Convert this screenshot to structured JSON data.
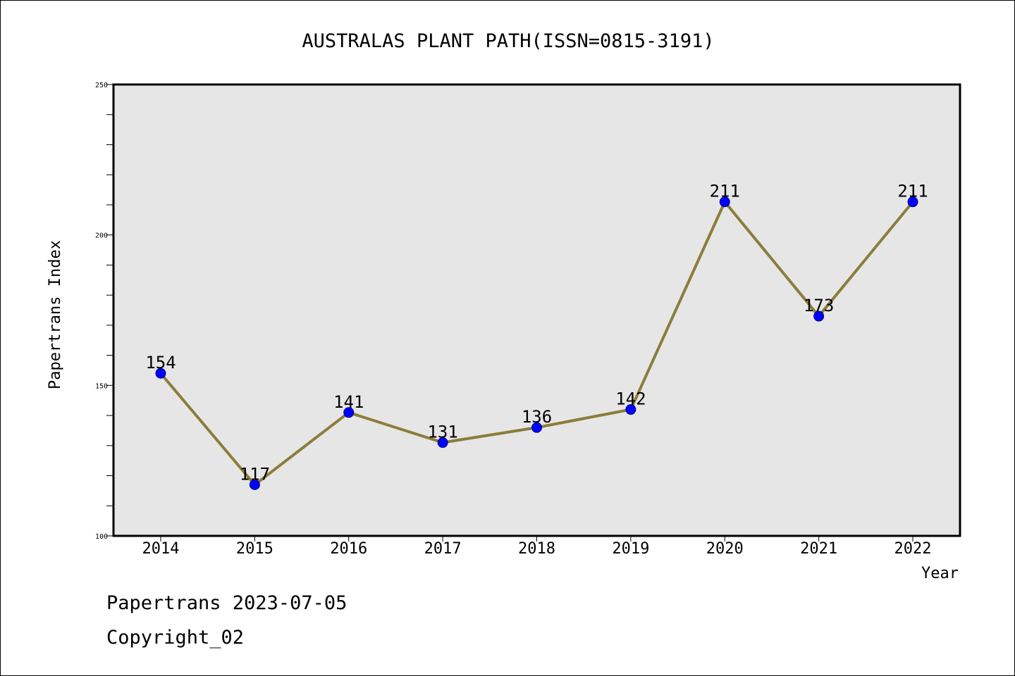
{
  "chart_data": {
    "type": "line",
    "title": "AUSTRALAS PLANT PATH(ISSN=0815-3191)",
    "xlabel": "Year",
    "ylabel": "Papertrans Index",
    "x": [
      "2014",
      "2015",
      "2016",
      "2017",
      "2018",
      "2019",
      "2020",
      "2021",
      "2022"
    ],
    "series": [
      {
        "values": [
          154,
          117,
          141,
          131,
          136,
          142,
          211,
          173,
          211
        ]
      }
    ],
    "ylim": [
      100,
      250
    ],
    "y_ticks": [
      100,
      150,
      200,
      250
    ],
    "grid": false,
    "colors": {
      "line": "#8b7d3a",
      "marker": "#0000ff",
      "plot_background": "#e6e6e6"
    }
  },
  "footer": {
    "date_text": "Papertrans 2023-07-05",
    "copyright_text": "Copyright_02"
  }
}
